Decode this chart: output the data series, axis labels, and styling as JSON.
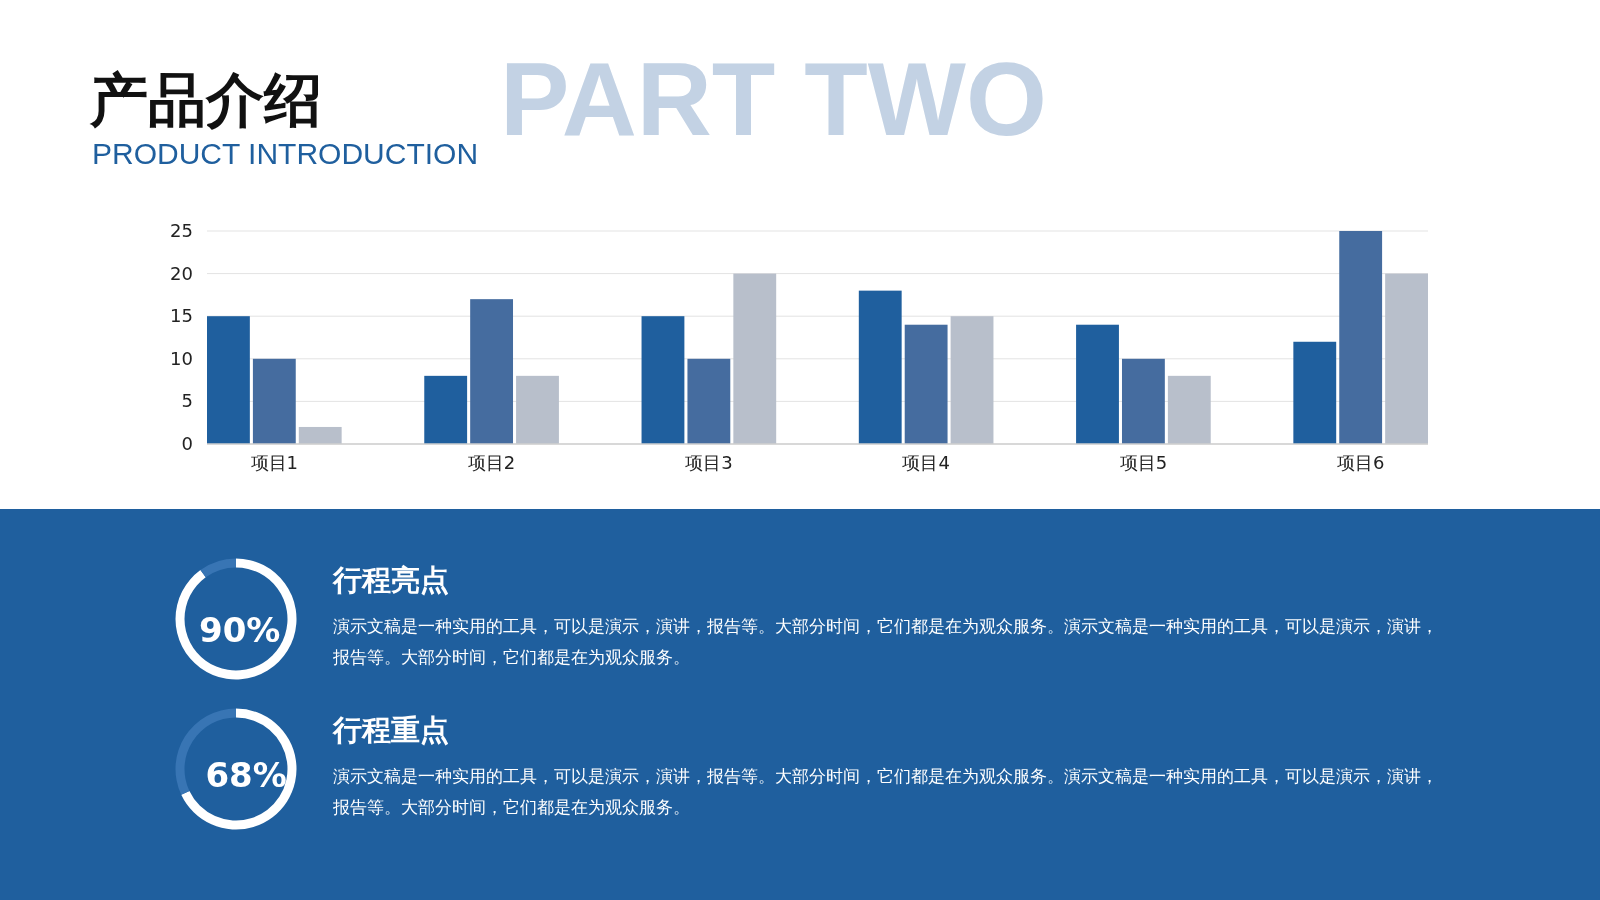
{
  "chart_data": [
    {
      "type": "bar",
      "title": "产品介绍",
      "subtitle": "PRODUCT INTRODUCTION",
      "annotations": [
        "PART TWO"
      ],
      "categories": [
        "项目1",
        "项目2",
        "项目3",
        "项目4",
        "项目5",
        "项目6"
      ],
      "series": [
        {
          "color": "#1f5f9e",
          "values": [
            15,
            8,
            15,
            18,
            14,
            12
          ]
        },
        {
          "color": "#456c9f",
          "values": [
            10,
            17,
            10,
            14,
            10,
            25
          ]
        },
        {
          "color": "#b8bfcb",
          "values": [
            2,
            8,
            20,
            15,
            8,
            20
          ]
        }
      ],
      "ylim": [
        0,
        25
      ],
      "yticks": [
        0,
        5,
        10,
        15,
        20,
        25
      ],
      "grid": "y"
    },
    {
      "type": "donut",
      "title": "行程亮点",
      "categories": [
        null,
        null
      ],
      "values": [
        90,
        10
      ],
      "colors": [
        "#ffffff",
        "#3875b4"
      ],
      "value_labels": [
        "90%",
        null
      ],
      "annotations": [
        "演示文稿是一种实用的工具，可以是演示，演讲，报告等。大部分时间，它们都是在为观众服务。演示文稿是一种实用的工具，可以是演示，演讲，报告等。大部分时间，它们都是在为观众服务。"
      ]
    },
    {
      "type": "donut",
      "title": "行程重点",
      "categories": [
        null,
        null
      ],
      "values": [
        68,
        32
      ],
      "colors": [
        "#ffffff",
        "#3875b4"
      ],
      "value_labels": [
        "68%",
        null
      ],
      "annotations": [
        "演示文稿是一种实用的工具，可以是演示，演讲，报告等。大部分时间，它们都是在为观众服务。演示文稿是一种实用的工具，可以是演示，演讲，报告等。大部分时间，它们都是在为观众服务。"
      ]
    }
  ]
}
